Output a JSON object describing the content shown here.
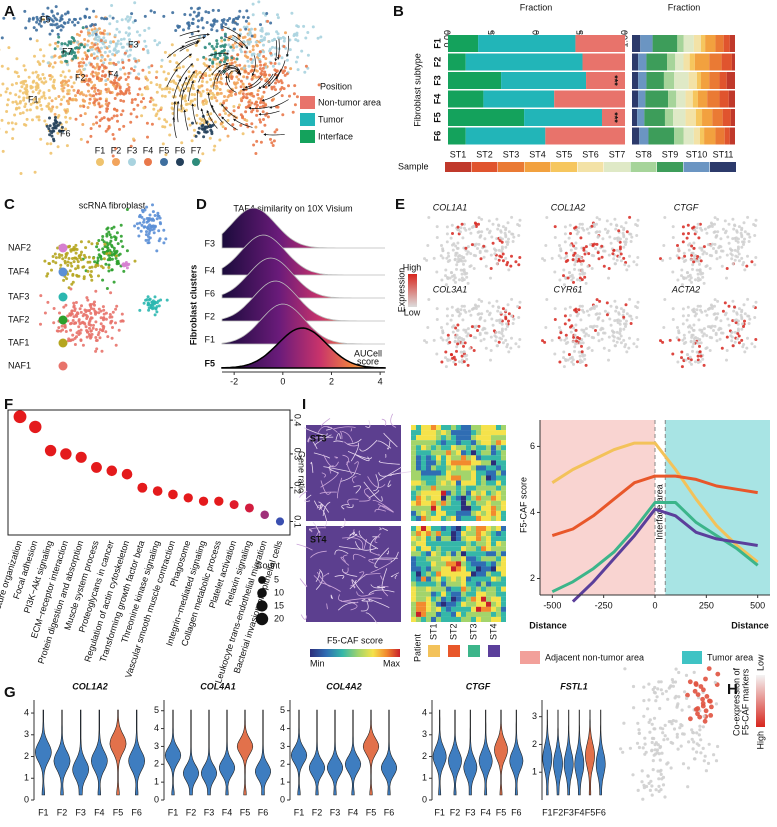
{
  "A": {
    "label": "A",
    "umap_labels": [
      "F5",
      "F3",
      "F7",
      "F2",
      "F4",
      "F1",
      "F6"
    ],
    "clusters": [
      "F1",
      "F2",
      "F3",
      "F4",
      "F5",
      "F6",
      "F7"
    ],
    "cluster_colors": [
      "#efc36e",
      "#f2a45c",
      "#a9d3df",
      "#e9784a",
      "#3e6f9f",
      "#24405b",
      "#2d8b7b"
    ],
    "legend_title": "Position",
    "positions": [
      {
        "name": "Non-tumor area",
        "color": "#e8736b"
      },
      {
        "name": "Tumor",
        "color": "#22b5b8"
      },
      {
        "name": "Interface",
        "color": "#14a25c"
      }
    ]
  },
  "B": {
    "label": "B",
    "x_label": "Fraction",
    "y_label": "Fibroblast subtype",
    "categories": [
      "F1",
      "F2",
      "F3",
      "F4",
      "F5",
      "F6"
    ],
    "xlim": [
      0,
      1
    ],
    "xticks": [
      {
        "value": 0,
        "label": "0.00"
      },
      {
        "value": 0.25,
        "label": "0.25"
      },
      {
        "value": 0.5,
        "label": "0.50"
      },
      {
        "value": 0.75,
        "label": "0.75"
      },
      {
        "value": 1,
        "label": "1.00"
      }
    ],
    "position_fractions": [
      [
        0.28,
        0.24,
        0.22,
        0.4,
        0.13,
        0.45
      ],
      [
        0.55,
        0.66,
        0.48,
        0.4,
        0.44,
        0.45
      ],
      [
        0.17,
        0.1,
        0.3,
        0.2,
        0.43,
        0.1
      ]
    ],
    "annotations": [
      {
        "category": "F3",
        "text": "***"
      },
      {
        "category": "F5",
        "text": "***"
      }
    ],
    "sample_label": "Sample",
    "samples": [
      {
        "name": "ST1",
        "color": "#c0392b"
      },
      {
        "name": "ST2",
        "color": "#e0542e"
      },
      {
        "name": "ST3",
        "color": "#ea7a34"
      },
      {
        "name": "ST4",
        "color": "#f2a13f"
      },
      {
        "name": "ST5",
        "color": "#f6c65e"
      },
      {
        "name": "ST6",
        "color": "#f3e2a6"
      },
      {
        "name": "ST7",
        "color": "#dfe9c6"
      },
      {
        "name": "ST8",
        "color": "#a6d49a"
      },
      {
        "name": "ST9",
        "color": "#3d9d5a"
      },
      {
        "name": "ST10",
        "color": "#6b95c2"
      },
      {
        "name": "ST11",
        "color": "#2c3a6b"
      }
    ],
    "sample_fractions": [
      [
        0.05,
        0.06,
        0.08,
        0.1,
        0.04,
        0.07,
        0.1,
        0.06,
        0.24,
        0.12,
        0.08
      ],
      [
        0.03,
        0.1,
        0.12,
        0.14,
        0.05,
        0.06,
        0.08,
        0.08,
        0.2,
        0.08,
        0.06
      ],
      [
        0.08,
        0.07,
        0.1,
        0.08,
        0.04,
        0.08,
        0.14,
        0.1,
        0.17,
        0.08,
        0.06
      ],
      [
        0.06,
        0.09,
        0.12,
        0.09,
        0.05,
        0.07,
        0.09,
        0.08,
        0.22,
        0.07,
        0.06
      ],
      [
        0.04,
        0.08,
        0.1,
        0.1,
        0.06,
        0.1,
        0.12,
        0.08,
        0.2,
        0.07,
        0.05
      ],
      [
        0.05,
        0.05,
        0.09,
        0.11,
        0.04,
        0.06,
        0.1,
        0.09,
        0.25,
        0.09,
        0.07
      ]
    ]
  },
  "C": {
    "label": "C",
    "title": "scRNA fibroblast",
    "groups": [
      {
        "name": "NAF2",
        "color": "#d67fd0"
      },
      {
        "name": "TAF4",
        "color": "#5b8fd6"
      },
      {
        "name": "TAF3",
        "color": "#2bb7b0"
      },
      {
        "name": "TAF2",
        "color": "#2ca02c"
      },
      {
        "name": "TAF1",
        "color": "#b5a51f"
      },
      {
        "name": "NAF1",
        "color": "#e8736b"
      }
    ]
  },
  "D": {
    "label": "D",
    "title": "TAF4 similarity on 10X Visium",
    "y_label": "Fibroblast clusters",
    "categories": [
      "F3",
      "F4",
      "F6",
      "F2",
      "F1",
      "F5"
    ],
    "peaks": [
      -1.2,
      -0.8,
      -0.5,
      -0.3,
      0.0,
      0.8
    ],
    "xlim": [
      -2.5,
      4.2
    ],
    "xticks": [
      -2,
      0,
      2,
      4
    ],
    "x_label_lines": [
      "AUCell",
      "score"
    ]
  },
  "E": {
    "label": "E",
    "genes": [
      "COL1A1",
      "COL1A2",
      "CTGF",
      "COL3A1",
      "CYR61",
      "ACTA2"
    ],
    "legend_title": "Expression",
    "legend_high": "High",
    "legend_low": "Low"
  },
  "F": {
    "label": "F",
    "categories": [
      "ECM and structure organization",
      "Focal adhesion",
      "PI3K−Akt signaling",
      "ECM−receptor interaction",
      "Protein digestion and absorption",
      "Muscle system process",
      "Proteoglycans in cancer",
      "Regulation of actin cytoskeleton",
      "Transforming growth factor beta",
      "Threonine kinase signaling",
      "Vascular smooth muscle contraction",
      "Phagosome",
      "Integrin−mediated signaling",
      "Collagen metabolic process",
      "Platelet activation",
      "Relaxin signaling",
      "Leukocyte trans-endothelial migration",
      "Bacterial invasion of epithelial cells"
    ],
    "values": [
      0.41,
      0.38,
      0.31,
      0.3,
      0.29,
      0.26,
      0.25,
      0.24,
      0.2,
      0.19,
      0.18,
      0.17,
      0.16,
      0.16,
      0.15,
      0.14,
      0.12,
      0.1
    ],
    "counts": [
      22,
      20,
      16,
      16,
      15,
      14,
      13,
      13,
      11,
      10,
      10,
      9,
      9,
      9,
      8,
      8,
      7,
      6
    ],
    "colors": [
      "#e41a1c",
      "#e41a1c",
      "#e41a1c",
      "#e41a1c",
      "#e41a1c",
      "#e41a1c",
      "#e41a1c",
      "#e41a1c",
      "#e41a1c",
      "#e41a1c",
      "#e41a1c",
      "#e41a1c",
      "#e41a1c",
      "#e41a1c",
      "#e01a2a",
      "#d21c3e",
      "#a0307a",
      "#3a4fb0"
    ],
    "ylim": [
      0.06,
      0.43
    ],
    "yticks": [
      0.1,
      0.2,
      0.3,
      0.4
    ],
    "y_label": "Gene ratio",
    "size_legend_title": "Count",
    "size_legend": [
      5,
      10,
      15,
      20
    ]
  },
  "I": {
    "label": "I",
    "images": [
      "ST3",
      "ST4"
    ],
    "colorbar_title": "F5-CAF score",
    "colorbar_min": "Min",
    "colorbar_max": "Max",
    "patient_label": "Patient",
    "x": [
      -500,
      -400,
      -300,
      -200,
      -100,
      0,
      100,
      200,
      300,
      400,
      500
    ],
    "series": [
      {
        "name": "ST1",
        "color": "#f3c25a",
        "values": [
          4.9,
          5.3,
          5.6,
          5.9,
          6.1,
          6.1,
          5.3,
          4.4,
          3.6,
          3.0,
          2.5
        ]
      },
      {
        "name": "ST2",
        "color": "#e8572a",
        "values": [
          3.3,
          3.5,
          3.9,
          4.4,
          4.9,
          5.1,
          5.1,
          5.0,
          4.8,
          4.7,
          4.6
        ]
      },
      {
        "name": "ST3",
        "color": "#3cb58a",
        "values": [
          1.6,
          1.9,
          2.3,
          2.8,
          3.5,
          4.3,
          4.3,
          3.7,
          3.3,
          2.9,
          2.4
        ]
      },
      {
        "name": "ST4",
        "color": "#5b3f9b",
        "values": [
          null,
          1.3,
          1.9,
          2.6,
          3.3,
          4.1,
          3.9,
          3.4,
          3.2,
          3.1,
          3.0
        ]
      }
    ],
    "xlim": [
      -560,
      560
    ],
    "ylim": [
      1.5,
      6.8
    ],
    "xticks": [
      -500,
      -250,
      0,
      250,
      500
    ],
    "yticks": [
      2,
      4,
      6
    ],
    "y_label": "F5-CAF score",
    "x_labels": [
      "Distance",
      "Distance"
    ],
    "annotation": "Interface area",
    "areas": [
      {
        "name": "Adjacent non-tumor area",
        "color": "#f2a09a"
      },
      {
        "name": "Tumor area",
        "color": "#3fc3c4"
      }
    ]
  },
  "G": {
    "label": "G",
    "categories": [
      "F1",
      "F2",
      "F3",
      "F4",
      "F5",
      "F6"
    ],
    "highlight": "F5",
    "color": "#3e7dc0",
    "highlight_color": "#e2714b",
    "panels": [
      {
        "gene": "COL1A2",
        "ylim": [
          0,
          4.6
        ],
        "yticks": [
          0,
          1,
          2,
          3,
          4
        ],
        "modes": [
          2.2,
          1.8,
          1.4,
          1.8,
          2.6,
          1.8
        ]
      },
      {
        "gene": "COL4A1",
        "ylim": [
          0,
          5.6
        ],
        "yticks": [
          0,
          1,
          2,
          3,
          4,
          5
        ],
        "modes": [
          2.5,
          1.5,
          1.5,
          1.8,
          3.0,
          1.6
        ]
      },
      {
        "gene": "COL4A2",
        "ylim": [
          0,
          5.6
        ],
        "yticks": [
          0,
          1,
          2,
          3,
          4,
          5
        ],
        "modes": [
          2.5,
          1.8,
          1.8,
          2.0,
          3.0,
          1.8
        ]
      },
      {
        "gene": "CTGF",
        "ylim": [
          0,
          4.6
        ],
        "yticks": [
          0,
          1,
          2,
          3,
          4
        ],
        "modes": [
          2.0,
          1.8,
          1.5,
          1.8,
          2.3,
          1.8
        ]
      },
      {
        "gene": "FSTL1",
        "ylim": [
          0,
          3.6
        ],
        "yticks": [
          1,
          2,
          3
        ],
        "modes": [
          1.5,
          1.3,
          1.3,
          1.3,
          1.6,
          1.3
        ]
      }
    ]
  },
  "H": {
    "label": "H",
    "legend_low": "Low",
    "legend_high": "High",
    "legend_title_lines": [
      "Co-expression of",
      "F5-CAF markers"
    ]
  }
}
